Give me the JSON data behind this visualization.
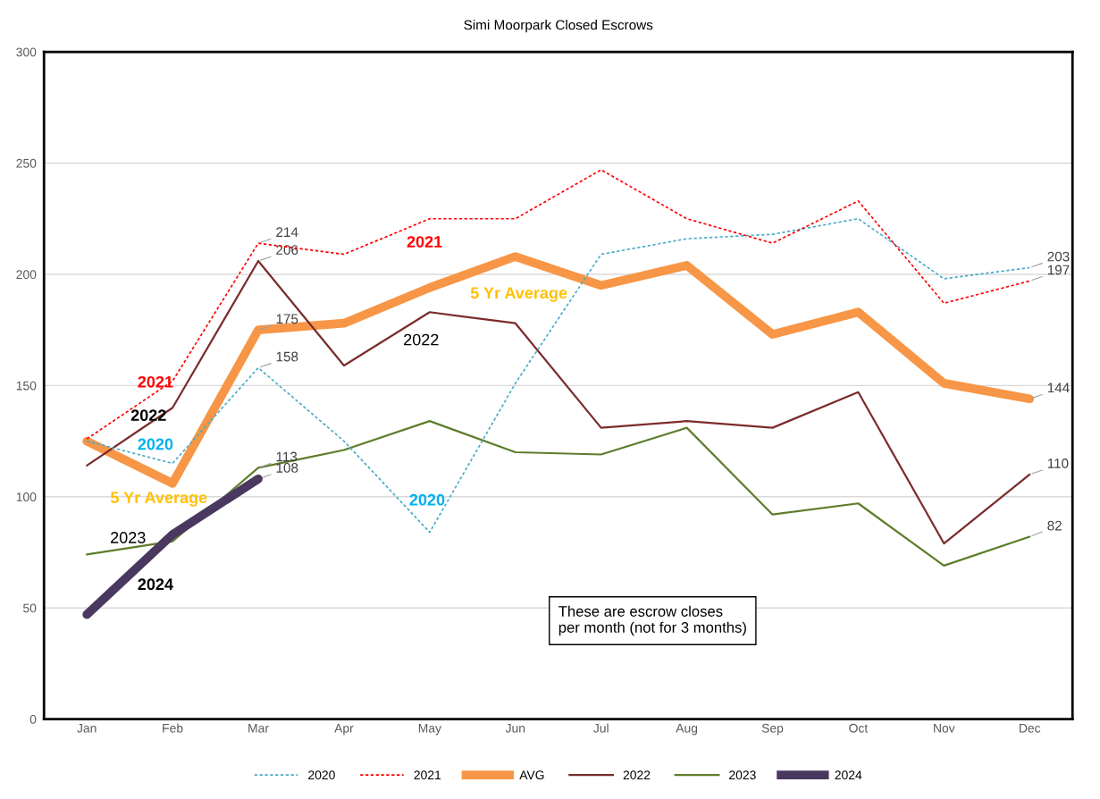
{
  "chart_data": {
    "type": "line",
    "title": "Simi Moorpark Closed Escrows",
    "categories": [
      "Jan",
      "Feb",
      "Mar",
      "Apr",
      "May",
      "Jun",
      "Jul",
      "Aug",
      "Sep",
      "Oct",
      "Nov",
      "Dec"
    ],
    "series": [
      {
        "name": "2020",
        "color": "#4bacc6",
        "line_style": "dashed",
        "values": [
          125,
          115,
          158,
          125,
          84,
          151,
          209,
          216,
          218,
          225,
          198,
          203
        ],
        "value_labels": [
          null,
          null,
          "158",
          null,
          null,
          null,
          null,
          null,
          null,
          null,
          null,
          "203"
        ]
      },
      {
        "name": "2021",
        "color": "#ff0000",
        "line_style": "dashed",
        "values": [
          126,
          152,
          214,
          209,
          225,
          225,
          247,
          225,
          214,
          233,
          187,
          197
        ],
        "value_labels": [
          null,
          null,
          "214",
          null,
          null,
          null,
          null,
          null,
          null,
          null,
          null,
          "197"
        ]
      },
      {
        "name": "AVG",
        "color": "#f79646",
        "line_style": "solid",
        "values": [
          125,
          106,
          175,
          178,
          194,
          208,
          195,
          204,
          173,
          183,
          151,
          144
        ],
        "value_labels": [
          null,
          null,
          "175",
          null,
          null,
          null,
          null,
          null,
          null,
          null,
          null,
          "144"
        ]
      },
      {
        "name": "2022",
        "color": "#7b2c2c",
        "line_style": "solid",
        "values": [
          114,
          140,
          206,
          159,
          183,
          178,
          131,
          134,
          131,
          147,
          79,
          110
        ],
        "value_labels": [
          null,
          null,
          "206",
          null,
          null,
          null,
          null,
          null,
          null,
          null,
          null,
          "110"
        ]
      },
      {
        "name": "2023",
        "color": "#5e7d2c",
        "line_style": "solid",
        "values": [
          74,
          80,
          113,
          121,
          134,
          120,
          119,
          131,
          92,
          97,
          69,
          82
        ],
        "value_labels": [
          null,
          null,
          "113",
          null,
          null,
          null,
          null,
          null,
          null,
          null,
          null,
          "82"
        ]
      },
      {
        "name": "2024",
        "color": "#4a3860",
        "line_style": "solid",
        "values": [
          47,
          83,
          108,
          null,
          null,
          null,
          null,
          null,
          null,
          null,
          null,
          null
        ],
        "value_labels": [
          null,
          null,
          "108",
          null,
          null,
          null,
          null,
          null,
          null,
          null,
          null,
          null
        ]
      }
    ],
    "ylim": [
      0,
      300
    ],
    "yticks": [
      0,
      50,
      100,
      150,
      200,
      250,
      300
    ],
    "grid": "y",
    "legend": "bottom",
    "marker": "none",
    "annotations": [
      "2021",
      "2022",
      "2020",
      "5 Yr Average",
      "2023",
      "2024",
      "2021",
      "5 Yr Average",
      "2022",
      "2020",
      "These are escrow closes\nper month (not for 3 months)"
    ]
  }
}
